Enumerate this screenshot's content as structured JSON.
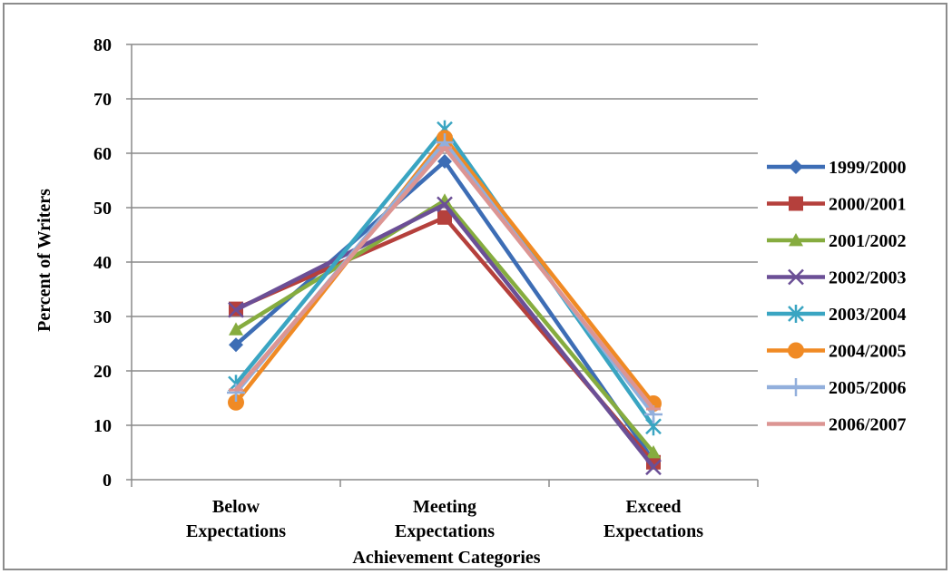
{
  "chart_data": {
    "type": "line",
    "title": "",
    "xlabel": "Achievement Categories",
    "ylabel": "Percent of Writers",
    "ylim": [
      0,
      80
    ],
    "yticks": [
      "0",
      "10",
      "20",
      "30",
      "40",
      "50",
      "60",
      "70",
      "80"
    ],
    "grid": true,
    "legend_position": "right",
    "categories": [
      [
        "Below",
        "Expectations"
      ],
      [
        "Meeting",
        "Expectations"
      ],
      [
        "Exceed",
        "Expectations"
      ]
    ],
    "series": [
      {
        "name": "1999/2000",
        "color": "#3d6db5",
        "marker": "diamond",
        "values": [
          24.8,
          58.5,
          3.5
        ]
      },
      {
        "name": "2000/2001",
        "color": "#b5403c",
        "marker": "square",
        "values": [
          31.4,
          48.2,
          3.2
        ]
      },
      {
        "name": "2001/2002",
        "color": "#86ac3f",
        "marker": "triangle",
        "values": [
          27.6,
          51.3,
          5.0
        ]
      },
      {
        "name": "2002/2003",
        "color": "#6b4f96",
        "marker": "x",
        "values": [
          31.2,
          50.6,
          2.3
        ]
      },
      {
        "name": "2003/2004",
        "color": "#3aa5c2",
        "marker": "asterisk",
        "values": [
          17.6,
          64.4,
          9.8
        ]
      },
      {
        "name": "2004/2005",
        "color": "#f08a24",
        "marker": "circle",
        "values": [
          14.2,
          62.8,
          14.0
        ]
      },
      {
        "name": "2005/2006",
        "color": "#92afdc",
        "marker": "plus",
        "values": [
          16.0,
          62.0,
          12.0
        ]
      },
      {
        "name": "2006/2007",
        "color": "#dc9593",
        "marker": "dash",
        "values": [
          16.5,
          61.0,
          13.0
        ]
      }
    ]
  }
}
